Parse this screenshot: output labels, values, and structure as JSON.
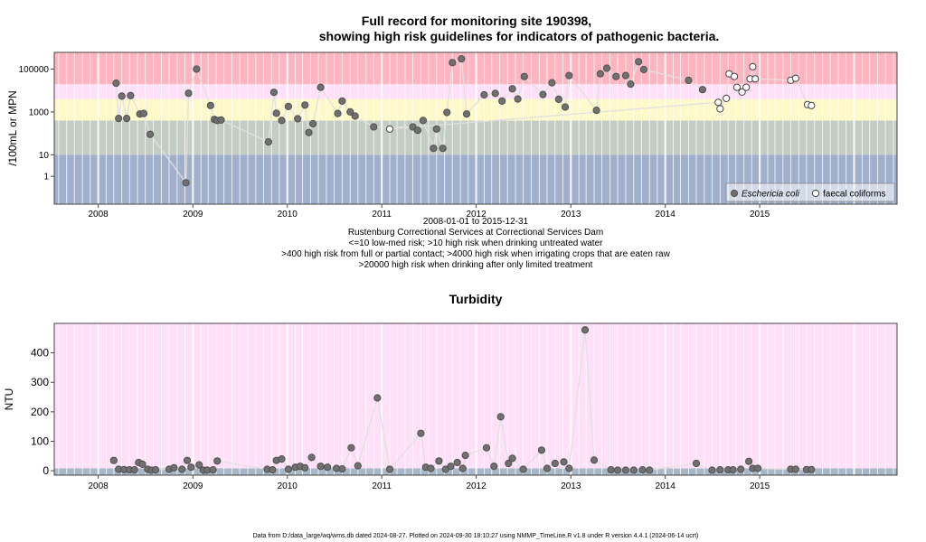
{
  "figure": {
    "title_line1": "Full record for monitoring site 190398,",
    "title_line2": "showing high risk guidelines for indicators of pathogenic bacteria.",
    "caption": [
      "2008-01-01 to 2015-12-31",
      "Rustenburg Correctional Services at Correctional Services Dam",
      "<=10 low-med risk; >10 high risk when drinking untreated water",
      ">400 high risk from full or partial contact; >4000 high risk when irrigating crops that are eaten raw",
      ">20000 high risk when drinking after only limited treatment"
    ],
    "footer": "Data from D:/data_large/wq/wms.db dated 2024-08-27. Plotted on 2024-09-30 18:10:27 using NMMP_TimeLine.R v1.8 under R version 4.4.1 (2024-06-14 ucrt)"
  },
  "colors": {
    "band_low": "#a0b0cc",
    "band_lowmed": "#c4cdc4",
    "band_contact": "#fff8c8",
    "band_irrig": "#ffe0f8",
    "band_high": "#ffb4c0",
    "turb_bg": "#ffe0f8",
    "turb_base": "#a8b8c8",
    "point_fill": "#707070",
    "point_stroke": "#505050",
    "line": "#e0e0e0"
  },
  "chart_data": [
    {
      "type": "scatter",
      "title": "",
      "ylabel": "/100mL or MPN",
      "xlabel": "",
      "y_scale": "log",
      "ylim": [
        0.05,
        600000
      ],
      "xlim": [
        "2007-07-15",
        "2016-06-15"
      ],
      "x_ticks": [
        "2008",
        "2009",
        "2010",
        "2011",
        "2012",
        "2013",
        "2014",
        "2015"
      ],
      "y_ticks": [
        1,
        10,
        1000,
        100000
      ],
      "y_tick_labels": [
        "1",
        "10",
        "1000",
        "100000"
      ],
      "grid": true,
      "legend_position": "bottom-right",
      "thresholds": [
        10,
        400,
        4000,
        20000
      ],
      "series": [
        {
          "name": "Eschericia coli",
          "marker": "filled-circle",
          "points": [
            [
              "2008-03-10",
              22000
            ],
            [
              "2008-03-20",
              500
            ],
            [
              "2008-04-01",
              5500
            ],
            [
              "2008-04-20",
              500
            ],
            [
              "2008-05-05",
              5800
            ],
            [
              "2008-06-10",
              800
            ],
            [
              "2008-06-25",
              850
            ],
            [
              "2008-07-20",
              90
            ],
            [
              "2008-12-05",
              0.5
            ],
            [
              "2008-12-15",
              7500
            ],
            [
              "2009-01-15",
              100000
            ],
            [
              "2009-03-10",
              2000
            ],
            [
              "2009-03-25",
              450
            ],
            [
              "2009-04-05",
              400
            ],
            [
              "2009-04-20",
              420
            ],
            [
              "2009-10-20",
              40
            ],
            [
              "2009-11-10",
              8200
            ],
            [
              "2009-11-20",
              870
            ],
            [
              "2009-12-10",
              400
            ],
            [
              "2010-01-05",
              1800
            ],
            [
              "2010-02-10",
              480
            ],
            [
              "2010-03-10",
              2100
            ],
            [
              "2010-03-25",
              110
            ],
            [
              "2010-04-10",
              280
            ],
            [
              "2010-05-10",
              14000
            ],
            [
              "2010-07-15",
              850
            ],
            [
              "2010-08-01",
              3200
            ],
            [
              "2010-09-01",
              1000
            ],
            [
              "2010-09-20",
              640
            ],
            [
              "2010-12-01",
              200
            ],
            [
              "2011-05-01",
              200
            ],
            [
              "2011-05-20",
              140
            ],
            [
              "2011-06-10",
              400
            ],
            [
              "2011-07-20",
              20
            ],
            [
              "2011-08-01",
              160
            ],
            [
              "2011-08-25",
              20
            ],
            [
              "2011-09-10",
              950
            ],
            [
              "2011-10-01",
              200000
            ],
            [
              "2011-11-05",
              300000
            ],
            [
              "2011-11-25",
              800
            ],
            [
              "2012-02-01",
              6300
            ],
            [
              "2012-03-15",
              7300
            ],
            [
              "2012-04-10",
              3200
            ],
            [
              "2012-05-20",
              12000
            ],
            [
              "2012-06-10",
              4000
            ],
            [
              "2012-07-05",
              45000
            ],
            [
              "2012-09-15",
              6500
            ],
            [
              "2012-10-20",
              23000
            ],
            [
              "2012-11-15",
              3900
            ],
            [
              "2012-12-10",
              1700
            ],
            [
              "2012-12-25",
              50000
            ],
            [
              "2013-04-10",
              1200
            ],
            [
              "2013-04-25",
              60000
            ],
            [
              "2013-05-20",
              110000
            ],
            [
              "2013-06-25",
              45000
            ],
            [
              "2013-08-01",
              50000
            ],
            [
              "2013-08-20",
              20000
            ],
            [
              "2013-09-20",
              220000
            ],
            [
              "2013-10-10",
              95000
            ],
            [
              "2014-04-01",
              30000
            ],
            [
              "2014-05-25",
              11000
            ]
          ]
        },
        {
          "name": "faecal coliforms",
          "marker": "open-circle",
          "points": [
            [
              "2011-02-01",
              160
            ],
            [
              "2014-07-25",
              2800
            ],
            [
              "2014-08-01",
              1400
            ],
            [
              "2014-08-25",
              4300
            ],
            [
              "2014-09-05",
              60000
            ],
            [
              "2014-09-25",
              45000
            ],
            [
              "2014-10-05",
              14000
            ],
            [
              "2014-10-25",
              8500
            ],
            [
              "2014-11-10",
              14000
            ],
            [
              "2014-11-25",
              35000
            ],
            [
              "2014-12-05",
              130000
            ],
            [
              "2014-12-15",
              35000
            ],
            [
              "2015-05-01",
              30000
            ],
            [
              "2015-05-20",
              37000
            ],
            [
              "2015-07-05",
              2200
            ],
            [
              "2015-07-20",
              2000
            ]
          ]
        }
      ]
    },
    {
      "type": "line",
      "title": "Turbidity",
      "ylabel": "NTU",
      "xlabel": "",
      "ylim": [
        -15,
        500
      ],
      "xlim": [
        "2007-07-15",
        "2016-06-15"
      ],
      "x_ticks": [
        "2008",
        "2009",
        "2010",
        "2011",
        "2012",
        "2013",
        "2014",
        "2015"
      ],
      "y_ticks": [
        0,
        100,
        200,
        300,
        400
      ],
      "grid": true,
      "series": [
        {
          "name": "",
          "points": [
            [
              "2008-03-01",
              35
            ],
            [
              "2008-03-20",
              5
            ],
            [
              "2008-04-10",
              4
            ],
            [
              "2008-05-01",
              3
            ],
            [
              "2008-05-20",
              3
            ],
            [
              "2008-06-05",
              28
            ],
            [
              "2008-06-20",
              22
            ],
            [
              "2008-07-10",
              5
            ],
            [
              "2008-07-25",
              2
            ],
            [
              "2008-08-10",
              3
            ],
            [
              "2008-10-01",
              5
            ],
            [
              "2008-10-20",
              10
            ],
            [
              "2008-11-20",
              5
            ],
            [
              "2008-12-10",
              35
            ],
            [
              "2008-12-25",
              12
            ],
            [
              "2009-01-25",
              20
            ],
            [
              "2009-02-10",
              2
            ],
            [
              "2009-02-25",
              2
            ],
            [
              "2009-03-20",
              3
            ],
            [
              "2009-04-05",
              33
            ],
            [
              "2009-10-15",
              5
            ],
            [
              "2009-11-05",
              3
            ],
            [
              "2009-11-20",
              35
            ],
            [
              "2009-12-10",
              40
            ],
            [
              "2010-01-05",
              5
            ],
            [
              "2010-02-01",
              12
            ],
            [
              "2010-02-20",
              15
            ],
            [
              "2010-03-10",
              10
            ],
            [
              "2010-04-05",
              45
            ],
            [
              "2010-05-10",
              15
            ],
            [
              "2010-06-05",
              12
            ],
            [
              "2010-07-10",
              8
            ],
            [
              "2010-08-01",
              6
            ],
            [
              "2010-09-05",
              78
            ],
            [
              "2010-10-01",
              17
            ],
            [
              "2010-12-15",
              247
            ],
            [
              "2011-02-01",
              5
            ],
            [
              "2011-06-01",
              127
            ],
            [
              "2011-06-20",
              12
            ],
            [
              "2011-07-10",
              8
            ],
            [
              "2011-08-10",
              33
            ],
            [
              "2011-09-05",
              5
            ],
            [
              "2011-09-25",
              15
            ],
            [
              "2011-10-20",
              28
            ],
            [
              "2011-11-10",
              8
            ],
            [
              "2011-11-20",
              52
            ],
            [
              "2012-02-10",
              78
            ],
            [
              "2012-03-10",
              15
            ],
            [
              "2012-04-05",
              183
            ],
            [
              "2012-05-05",
              25
            ],
            [
              "2012-05-20",
              42
            ],
            [
              "2012-07-01",
              5
            ],
            [
              "2012-09-10",
              70
            ],
            [
              "2012-10-01",
              8
            ],
            [
              "2012-11-01",
              25
            ],
            [
              "2012-12-05",
              30
            ],
            [
              "2012-12-25",
              8
            ],
            [
              "2013-02-25",
              478
            ],
            [
              "2013-04-01",
              36
            ],
            [
              "2013-06-05",
              3
            ],
            [
              "2013-07-01",
              2
            ],
            [
              "2013-08-01",
              2
            ],
            [
              "2013-09-01",
              2
            ],
            [
              "2013-10-05",
              3
            ],
            [
              "2013-11-01",
              2
            ],
            [
              "2014-05-01",
              25
            ],
            [
              "2014-07-01",
              2
            ],
            [
              "2014-08-01",
              3
            ],
            [
              "2014-09-01",
              3
            ],
            [
              "2014-09-20",
              3
            ],
            [
              "2014-10-20",
              5
            ],
            [
              "2014-11-20",
              32
            ],
            [
              "2014-12-05",
              8
            ],
            [
              "2014-12-25",
              8
            ],
            [
              "2015-05-01",
              5
            ],
            [
              "2015-05-20",
              5
            ],
            [
              "2015-07-01",
              4
            ],
            [
              "2015-07-20",
              4
            ]
          ]
        }
      ]
    }
  ]
}
